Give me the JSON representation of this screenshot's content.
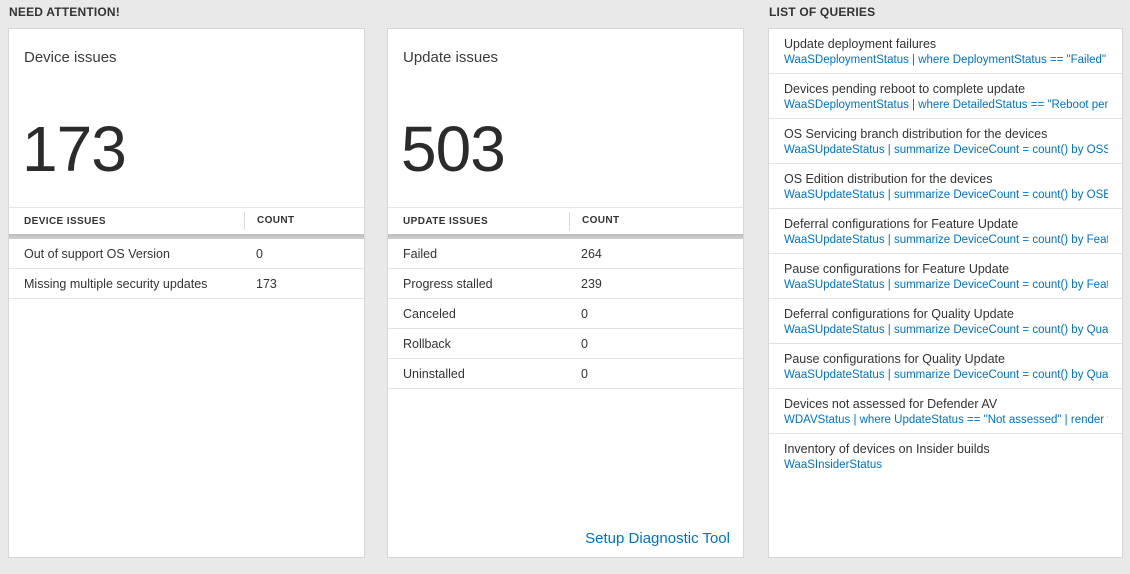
{
  "colors": {
    "page_background": "#e9e9e9",
    "accent_blue": "#0072c6",
    "card_border": "#d6d6d6"
  },
  "need_attention": {
    "header": "NEED ATTENTION!",
    "device_card": {
      "title": "Device issues",
      "big_number": "173",
      "table": {
        "headers": [
          "DEVICE ISSUES",
          "COUNT"
        ],
        "rows": [
          {
            "label": "Out of support OS Version",
            "count": "0"
          },
          {
            "label": "Missing multiple security updates",
            "count": "173"
          }
        ]
      }
    },
    "update_card": {
      "title": "Update issues",
      "big_number": "503",
      "table": {
        "headers": [
          "UPDATE ISSUES",
          "COUNT"
        ],
        "rows": [
          {
            "label": "Failed",
            "count": "264"
          },
          {
            "label": "Progress stalled",
            "count": "239"
          },
          {
            "label": "Canceled",
            "count": "0"
          },
          {
            "label": "Rollback",
            "count": "0"
          },
          {
            "label": "Uninstalled",
            "count": "0"
          }
        ]
      },
      "footer_link": "Setup Diagnostic Tool"
    }
  },
  "queries": {
    "header": "LIST OF QUERIES",
    "items": [
      {
        "title": "Update deployment failures",
        "query": "WaaSDeploymentStatus | where DeploymentStatus == \"Failed\" |..."
      },
      {
        "title": "Devices pending reboot to complete update",
        "query": "WaaSDeploymentStatus | where DetailedStatus == \"Reboot pend..."
      },
      {
        "title": "OS Servicing branch distribution for the devices",
        "query": "WaaSUpdateStatus | summarize DeviceCount = count() by OSSer..."
      },
      {
        "title": "OS Edition distribution for the devices",
        "query": "WaaSUpdateStatus | summarize DeviceCount = count() by OSEdit..."
      },
      {
        "title": "Deferral configurations for Feature Update",
        "query": "WaaSUpdateStatus | summarize DeviceCount = count() by Featur..."
      },
      {
        "title": "Pause configurations for Feature Update",
        "query": "WaaSUpdateStatus | summarize DeviceCount = count() by Featur..."
      },
      {
        "title": "Deferral configurations for Quality Update",
        "query": "WaaSUpdateStatus | summarize DeviceCount = count() by Qualit..."
      },
      {
        "title": "Pause configurations for Quality Update",
        "query": "WaaSUpdateStatus | summarize DeviceCount = count() by Qualit..."
      },
      {
        "title": "Devices not assessed for Defender AV",
        "query": "WDAVStatus | where UpdateStatus == \"Not assessed\" | render ta..."
      },
      {
        "title": "Inventory of devices on Insider builds",
        "query": "WaaSInsiderStatus"
      }
    ]
  }
}
